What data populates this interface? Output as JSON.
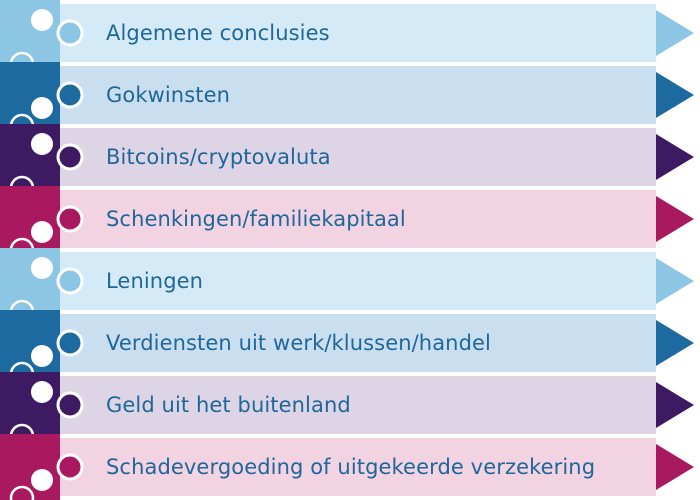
{
  "rows": [
    {
      "label": "Algemene conclusies",
      "piece_color": "#8dc6e4",
      "band_color": "#d4ebf7",
      "arrow_color": "#8dc6e4",
      "text_color": "#1f6699"
    },
    {
      "label": "Gokwinsten",
      "piece_color": "#1c6aa0",
      "band_color": "#c9dff0",
      "arrow_color": "#1c6aa0",
      "text_color": "#1f6699"
    },
    {
      "label": "Bitcoins/cryptovaluta",
      "piece_color": "#3e1a63",
      "band_color": "#ddd5e6",
      "arrow_color": "#3e1a63",
      "text_color": "#1f6699"
    },
    {
      "label": "Schenkingen/familiekapitaal",
      "piece_color": "#a8195f",
      "band_color": "#f1d3e2",
      "arrow_color": "#a8195f",
      "text_color": "#1f6699"
    },
    {
      "label": "Leningen",
      "piece_color": "#8dc6e4",
      "band_color": "#d4ebf7",
      "arrow_color": "#8dc6e4",
      "text_color": "#1f6699"
    },
    {
      "label": "Verdiensten uit werk/klussen/handel",
      "piece_color": "#1c6aa0",
      "band_color": "#c9dff0",
      "arrow_color": "#1c6aa0",
      "text_color": "#1f6699"
    },
    {
      "label": "Geld uit het buitenland",
      "piece_color": "#3e1a63",
      "band_color": "#ddd5e6",
      "arrow_color": "#3e1a63",
      "text_color": "#1f6699"
    },
    {
      "label": "Schadevergoeding of uitgekeerde verzekering",
      "piece_color": "#a8195f",
      "band_color": "#f1d3e2",
      "arrow_color": "#a8195f",
      "text_color": "#1f6699"
    }
  ]
}
